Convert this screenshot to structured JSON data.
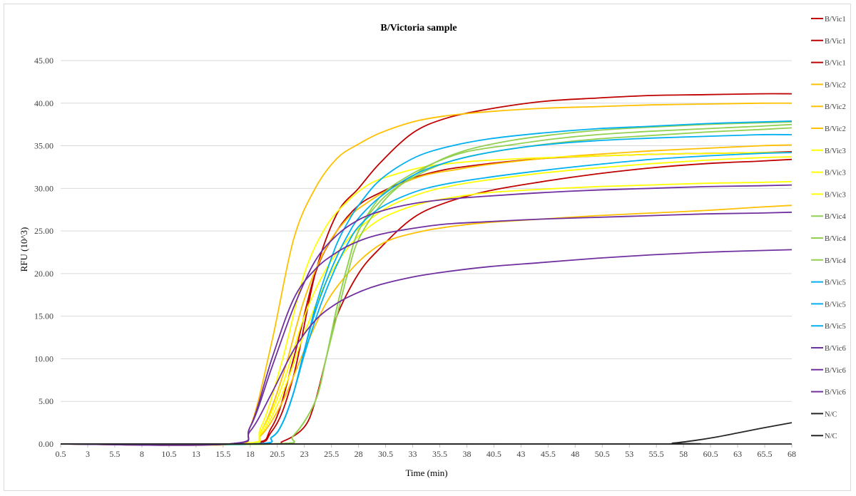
{
  "chart_data": {
    "type": "line",
    "title": "B/Victoria sample",
    "xlabel": "Time (min)",
    "ylabel": "RFU (10^3)",
    "ylim": [
      0,
      45
    ],
    "yticks": [
      "0.00",
      "5.00",
      "10.00",
      "15.00",
      "20.00",
      "25.00",
      "30.00",
      "35.00",
      "40.00",
      "45.00"
    ],
    "xticks": [
      "0.5",
      "3",
      "5.5",
      "8",
      "10.5",
      "13",
      "15.5",
      "18",
      "20.5",
      "23",
      "25.5",
      "28",
      "30.5",
      "33",
      "35.5",
      "38",
      "40.5",
      "43",
      "45.5",
      "48",
      "50.5",
      "53",
      "55.5",
      "58",
      "60.5",
      "63",
      "65.5",
      "68"
    ],
    "grid": true,
    "legend_position": "right",
    "series": [
      {
        "name": "B/Vic1",
        "color": "#c00000",
        "x": [
          0.5,
          17,
          20,
          22,
          24,
          26,
          28,
          30,
          33,
          36,
          40,
          45,
          50,
          55,
          60,
          65,
          68
        ],
        "y": [
          0,
          0,
          1.5,
          8,
          20,
          27,
          30,
          33,
          36.5,
          38.2,
          39.3,
          40.2,
          40.6,
          40.9,
          41,
          41.1,
          41.1
        ]
      },
      {
        "name": "B/Vic1",
        "color": "#c00000",
        "x": [
          0.5,
          17,
          20,
          22,
          24,
          26,
          28,
          30,
          33,
          36,
          40,
          45,
          50,
          55,
          60,
          65,
          68
        ],
        "y": [
          0,
          0,
          2,
          10,
          20,
          25,
          28,
          29.5,
          31.2,
          32.2,
          32.9,
          33.5,
          33.8,
          34,
          34.1,
          34.2,
          34.3
        ]
      },
      {
        "name": "B/Vic1",
        "color": "#c00000",
        "x": [
          0.5,
          19,
          21,
          23,
          24,
          25,
          26,
          28,
          30,
          33,
          36,
          40,
          45,
          50,
          55,
          60,
          65,
          68
        ],
        "y": [
          0,
          0,
          0.3,
          2,
          5,
          10,
          15,
          20,
          23,
          26.5,
          28.3,
          29.7,
          30.8,
          31.7,
          32.4,
          32.9,
          33.2,
          33.4
        ]
      },
      {
        "name": "B/Vic2",
        "color": "#ffc000",
        "x": [
          0.5,
          16,
          18,
          20,
          22,
          24,
          26,
          28,
          30,
          33,
          36,
          40,
          45,
          50,
          55,
          60,
          65,
          68
        ],
        "y": [
          0,
          0,
          2,
          12,
          24,
          30,
          33.5,
          35.2,
          36.5,
          37.8,
          38.5,
          39,
          39.4,
          39.6,
          39.8,
          39.9,
          40,
          40
        ]
      },
      {
        "name": "B/Vic2",
        "color": "#ffc000",
        "x": [
          0.5,
          17,
          19,
          21,
          23,
          25,
          27,
          29,
          31,
          34,
          37,
          40,
          45,
          50,
          55,
          60,
          65,
          68
        ],
        "y": [
          0,
          0,
          1.5,
          8,
          17,
          23,
          26.5,
          28.5,
          30,
          31.5,
          32.2,
          32.8,
          33.5,
          34,
          34.4,
          34.7,
          35,
          35.1
        ]
      },
      {
        "name": "B/Vic2",
        "color": "#ffc000",
        "x": [
          0.5,
          17,
          19,
          21,
          23,
          25,
          27,
          29,
          31,
          34,
          37,
          40,
          45,
          50,
          55,
          60,
          65,
          68
        ],
        "y": [
          0,
          0,
          1,
          5,
          11,
          16.5,
          20,
          22.5,
          24,
          25,
          25.6,
          26,
          26.4,
          26.8,
          27.1,
          27.4,
          27.8,
          28
        ]
      },
      {
        "name": "B/Vic3",
        "color": "#ffff00",
        "x": [
          0.5,
          17,
          19,
          21,
          23,
          25,
          27,
          29,
          31,
          34,
          37,
          40,
          45,
          50,
          55,
          60,
          65,
          68
        ],
        "y": [
          0,
          0,
          2,
          10,
          20,
          25.5,
          28.5,
          30.5,
          31.5,
          32.5,
          33,
          33.3,
          33.6,
          33.8,
          34,
          34.1,
          34.2,
          34.2
        ]
      },
      {
        "name": "B/Vic3",
        "color": "#ffff00",
        "x": [
          0.5,
          17,
          19,
          21,
          23,
          25,
          27,
          29,
          31,
          34,
          37,
          40,
          45,
          50,
          55,
          60,
          65,
          68
        ],
        "y": [
          0,
          0,
          1.5,
          7,
          15,
          20.5,
          24,
          26.3,
          28,
          29.5,
          30.4,
          31,
          31.8,
          32.4,
          32.9,
          33.3,
          33.6,
          33.7
        ]
      },
      {
        "name": "B/Vic3",
        "color": "#ffff00",
        "x": [
          0.5,
          17,
          19,
          21,
          23,
          25,
          27,
          29,
          31,
          34,
          37,
          40,
          45,
          50,
          55,
          60,
          65,
          68
        ],
        "y": [
          0,
          0,
          1.2,
          6,
          13,
          19,
          23,
          25.5,
          27,
          28.3,
          29,
          29.5,
          29.9,
          30.2,
          30.4,
          30.6,
          30.7,
          30.8
        ]
      },
      {
        "name": "B/Vic4",
        "color": "#92d050",
        "x": [
          0.5,
          20,
          22,
          24,
          25,
          26,
          27,
          28,
          30,
          32,
          35,
          38,
          42,
          46,
          50,
          55,
          60,
          65,
          68
        ],
        "y": [
          0,
          0,
          1,
          5,
          10,
          16,
          21,
          25,
          29,
          31,
          33,
          34.3,
          35.1,
          35.8,
          36.3,
          36.7,
          37,
          37.3,
          37.5
        ]
      },
      {
        "name": "B/Vic4",
        "color": "#92d050",
        "x": [
          0.5,
          20,
          22,
          24,
          25,
          26,
          27,
          28,
          30,
          32,
          35,
          38,
          42,
          46,
          50,
          55,
          60,
          65,
          68
        ],
        "y": [
          0,
          0,
          1,
          5,
          10,
          16,
          21,
          25,
          28.5,
          30.5,
          32.5,
          33.7,
          34.6,
          35.3,
          35.8,
          36.2,
          36.6,
          36.9,
          37.1
        ]
      },
      {
        "name": "B/Vic4",
        "color": "#92d050",
        "x": [
          0.5,
          20,
          22,
          24,
          25,
          26,
          27,
          28,
          30,
          32,
          35,
          38,
          42,
          46,
          50,
          55,
          60,
          65,
          68
        ],
        "y": [
          0,
          0,
          1,
          5,
          10,
          15,
          20,
          24,
          28,
          30.5,
          33,
          34.5,
          35.6,
          36.3,
          36.8,
          37.2,
          37.5,
          37.7,
          37.8
        ]
      },
      {
        "name": "B/Vic5",
        "color": "#00b0f0",
        "x": [
          0.5,
          18,
          20,
          21,
          22,
          23,
          24,
          25,
          26,
          27,
          28,
          30,
          33,
          36,
          40,
          45,
          50,
          55,
          60,
          65,
          68
        ],
        "y": [
          0,
          0,
          0.8,
          2.5,
          6,
          11,
          16,
          20,
          23.5,
          26,
          28,
          31,
          33.5,
          34.8,
          35.8,
          36.5,
          37,
          37.3,
          37.6,
          37.8,
          37.9
        ]
      },
      {
        "name": "B/Vic5",
        "color": "#00b0f0",
        "x": [
          0.5,
          18,
          20,
          21,
          22,
          23,
          24,
          25,
          26,
          27,
          28,
          30,
          33,
          36,
          40,
          45,
          50,
          55,
          60,
          65,
          68
        ],
        "y": [
          0,
          0,
          0.8,
          2.5,
          6,
          11,
          15.5,
          19,
          22,
          24.5,
          26.5,
          29,
          31.5,
          33,
          34.2,
          35.1,
          35.6,
          35.9,
          36.1,
          36.3,
          36.3
        ]
      },
      {
        "name": "B/Vic5",
        "color": "#00b0f0",
        "x": [
          0.5,
          18,
          20,
          21,
          22,
          23,
          24,
          25,
          26,
          27,
          28,
          30,
          33,
          36,
          40,
          45,
          50,
          55,
          60,
          65,
          68
        ],
        "y": [
          0,
          0,
          0.8,
          2.5,
          6,
          10.5,
          14.5,
          18,
          21,
          23.5,
          25.5,
          27.7,
          29.5,
          30.5,
          31.3,
          32.1,
          32.8,
          33.4,
          33.8,
          34.1,
          34.2
        ]
      },
      {
        "name": "B/Vic6",
        "color": "#7030a0",
        "x": [
          0.5,
          16,
          18,
          20,
          22,
          24,
          26,
          28,
          30,
          33,
          36,
          40,
          45,
          50,
          55,
          60,
          65,
          68
        ],
        "y": [
          0,
          0,
          2,
          9,
          16,
          21.5,
          24.5,
          26.3,
          27.3,
          28.2,
          28.7,
          29.1,
          29.5,
          29.8,
          30,
          30.2,
          30.3,
          30.4
        ]
      },
      {
        "name": "B/Vic6",
        "color": "#7030a0",
        "x": [
          0.5,
          16,
          18,
          20,
          22,
          24,
          26,
          28,
          30,
          33,
          36,
          40,
          45,
          50,
          55,
          60,
          65,
          68
        ],
        "y": [
          0,
          0,
          2,
          10,
          17,
          20.5,
          22.5,
          23.8,
          24.6,
          25.3,
          25.8,
          26.1,
          26.4,
          26.6,
          26.8,
          27,
          27.1,
          27.2
        ]
      },
      {
        "name": "B/Vic6",
        "color": "#7030a0",
        "x": [
          0.5,
          16,
          18,
          20,
          22,
          24,
          26,
          28,
          30,
          33,
          36,
          40,
          45,
          50,
          55,
          60,
          65,
          68
        ],
        "y": [
          0,
          0,
          1.5,
          6,
          11,
          14.5,
          16.5,
          17.8,
          18.7,
          19.6,
          20.2,
          20.8,
          21.3,
          21.8,
          22.2,
          22.5,
          22.7,
          22.8
        ]
      },
      {
        "name": "N/C",
        "color": "#262626",
        "x": [
          0.5,
          55,
          57,
          59,
          61,
          63,
          65,
          68
        ],
        "y": [
          0,
          0,
          0.1,
          0.4,
          0.8,
          1.3,
          1.8,
          2.5
        ]
      },
      {
        "name": "N/C",
        "color": "#262626",
        "x": [
          0.5,
          68
        ],
        "y": [
          0,
          0
        ]
      }
    ]
  }
}
